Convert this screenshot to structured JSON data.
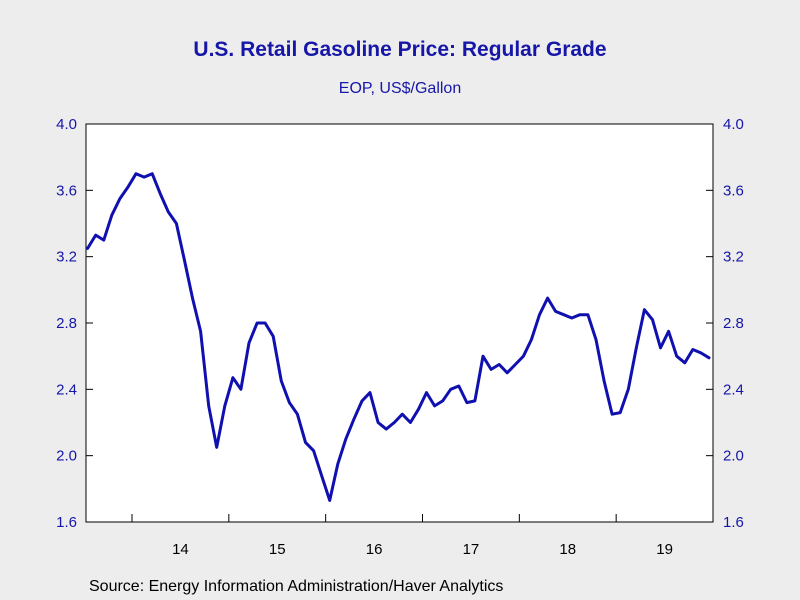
{
  "chart_data": {
    "type": "line",
    "title": "U.S. Retail Gasoline Price: Regular Grade",
    "subtitle": "EOP, US$/Gallon",
    "source": "Source:  Energy Information Administration/Haver Analytics",
    "ylim": [
      1.6,
      4.0
    ],
    "y_ticks": [
      "1.6",
      "2.0",
      "2.4",
      "2.8",
      "3.2",
      "3.6",
      "4.0"
    ],
    "x_tick_labels": [
      "14",
      "15",
      "16",
      "17",
      "18",
      "19"
    ],
    "grid": false,
    "axes": "dual-y",
    "color": "#1010b0",
    "series": [
      {
        "x": [
          "2013-07",
          "2013-08",
          "2013-09",
          "2013-10",
          "2013-11",
          "2013-12",
          "2014-01",
          "2014-02",
          "2014-03",
          "2014-04",
          "2014-05",
          "2014-06",
          "2014-07",
          "2014-08",
          "2014-09",
          "2014-10",
          "2014-11",
          "2014-12",
          "2015-01",
          "2015-02",
          "2015-03",
          "2015-04",
          "2015-05",
          "2015-06",
          "2015-07",
          "2015-08",
          "2015-09",
          "2015-10",
          "2015-11",
          "2015-12",
          "2016-01",
          "2016-02",
          "2016-03",
          "2016-04",
          "2016-05",
          "2016-06",
          "2016-07",
          "2016-08",
          "2016-09",
          "2016-10",
          "2016-11",
          "2016-12",
          "2017-01",
          "2017-02",
          "2017-03",
          "2017-04",
          "2017-05",
          "2017-06",
          "2017-07",
          "2017-08",
          "2017-09",
          "2017-10",
          "2017-11",
          "2017-12",
          "2018-01",
          "2018-02",
          "2018-03",
          "2018-04",
          "2018-05",
          "2018-06",
          "2018-07",
          "2018-08",
          "2018-09",
          "2018-10",
          "2018-11",
          "2018-12",
          "2019-01",
          "2019-02",
          "2019-03",
          "2019-04",
          "2019-05",
          "2019-06",
          "2019-07",
          "2019-08",
          "2019-09",
          "2019-10",
          "2019-11",
          "2019-12"
        ],
        "values": [
          3.25,
          3.33,
          3.3,
          3.45,
          3.55,
          3.62,
          3.7,
          3.68,
          3.7,
          3.58,
          3.47,
          3.4,
          3.18,
          2.95,
          2.75,
          2.3,
          2.05,
          2.3,
          2.47,
          2.4,
          2.68,
          2.8,
          2.8,
          2.72,
          2.45,
          2.32,
          2.25,
          2.08,
          2.03,
          1.88,
          1.73,
          1.95,
          2.1,
          2.22,
          2.33,
          2.38,
          2.2,
          2.16,
          2.2,
          2.25,
          2.2,
          2.28,
          2.38,
          2.3,
          2.33,
          2.4,
          2.42,
          2.32,
          2.33,
          2.6,
          2.52,
          2.55,
          2.5,
          2.55,
          2.6,
          2.7,
          2.85,
          2.95,
          2.87,
          2.85,
          2.83,
          2.85,
          2.85,
          2.7,
          2.45,
          2.25,
          2.26,
          2.4,
          2.65,
          2.88,
          2.82,
          2.65,
          2.75,
          2.6,
          2.56,
          2.64,
          2.62,
          2.59
        ]
      }
    ]
  }
}
